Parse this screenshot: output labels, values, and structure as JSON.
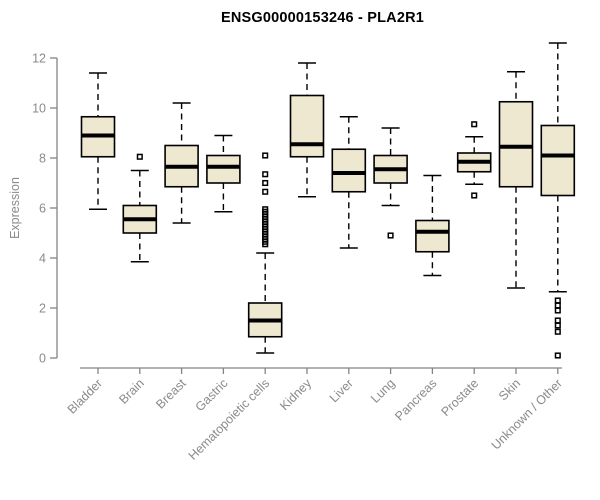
{
  "chart_data": {
    "type": "boxplot",
    "title": "ENSG00000153246 - PLA2R1",
    "xlabel": "",
    "ylabel": "Expression",
    "ylim": [
      0,
      12
    ],
    "yticks": [
      0,
      2,
      4,
      6,
      8,
      10,
      12
    ],
    "grid": false,
    "legend": "none",
    "categories": [
      "Bladder",
      "Brain",
      "Breast",
      "Gastric",
      "Hematopoietic cells",
      "Kidney",
      "Liver",
      "Lung",
      "Pancreas",
      "Prostate",
      "Skin",
      "Unknown / Other"
    ],
    "series": [
      {
        "name": "Bladder",
        "low": 5.95,
        "q1": 8.05,
        "median": 8.9,
        "q3": 9.65,
        "high": 11.4,
        "outliers": []
      },
      {
        "name": "Brain",
        "low": 3.85,
        "q1": 5.0,
        "median": 5.55,
        "q3": 6.1,
        "high": 7.5,
        "outliers": [
          8.05
        ]
      },
      {
        "name": "Breast",
        "low": 5.4,
        "q1": 6.85,
        "median": 7.65,
        "q3": 8.5,
        "high": 10.2,
        "outliers": []
      },
      {
        "name": "Gastric",
        "low": 5.85,
        "q1": 7.0,
        "median": 7.65,
        "q3": 8.1,
        "high": 8.9,
        "outliers": []
      },
      {
        "name": "Hematopoietic cells",
        "low": 0.2,
        "q1": 0.85,
        "median": 1.5,
        "q3": 2.2,
        "high": 4.2,
        "outliers": [
          8.1,
          7.35,
          7.0,
          6.65,
          5.95,
          5.85,
          5.75,
          5.65,
          5.55,
          5.45,
          5.35,
          5.25,
          5.15,
          5.05,
          4.95,
          4.85,
          4.75,
          4.65,
          4.55
        ]
      },
      {
        "name": "Kidney",
        "low": 6.45,
        "q1": 8.05,
        "median": 8.55,
        "q3": 10.5,
        "high": 11.8,
        "outliers": []
      },
      {
        "name": "Liver",
        "low": 4.4,
        "q1": 6.65,
        "median": 7.4,
        "q3": 8.35,
        "high": 9.65,
        "outliers": []
      },
      {
        "name": "Lung",
        "low": 6.1,
        "q1": 7.0,
        "median": 7.55,
        "q3": 8.1,
        "high": 9.2,
        "outliers": [
          4.9
        ]
      },
      {
        "name": "Pancreas",
        "low": 3.3,
        "q1": 4.25,
        "median": 5.05,
        "q3": 5.5,
        "high": 7.3,
        "outliers": []
      },
      {
        "name": "Prostate",
        "low": 6.95,
        "q1": 7.45,
        "median": 7.85,
        "q3": 8.2,
        "high": 8.85,
        "outliers": [
          9.35,
          6.5
        ]
      },
      {
        "name": "Skin",
        "low": 2.8,
        "q1": 6.85,
        "median": 8.45,
        "q3": 10.25,
        "high": 11.45,
        "outliers": []
      },
      {
        "name": "Unknown / Other",
        "low": 2.65,
        "q1": 6.5,
        "median": 8.1,
        "q3": 9.3,
        "high": 12.6,
        "outliers": [
          2.3,
          2.1,
          1.9,
          1.5,
          1.3,
          1.05,
          0.1
        ]
      }
    ],
    "colors": {
      "box_fill": "#EDE8CF",
      "box_stroke": "#000000",
      "median": "#000000",
      "axis": "#848484",
      "tick_text": "#8a8a8a",
      "title_text": "#000000",
      "background": "#ffffff"
    }
  }
}
